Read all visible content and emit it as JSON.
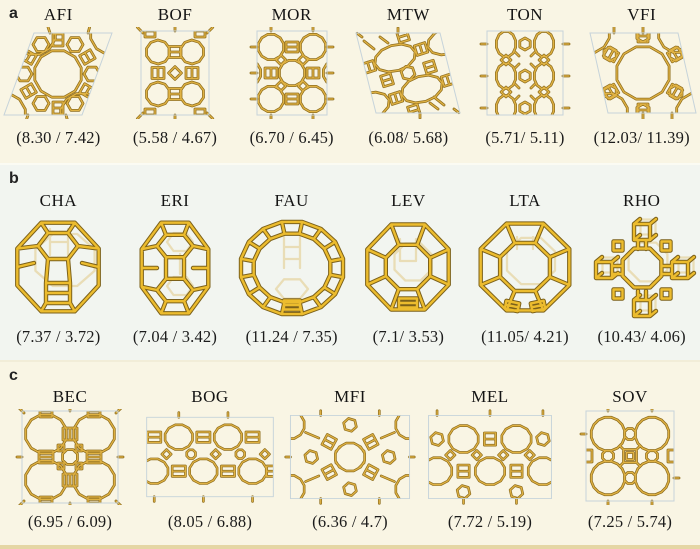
{
  "figure": {
    "description": "Zeolite framework structures with pore size values",
    "background": "#f9f5e4",
    "panel_b_background": "#f2f5f0",
    "framework_color": "#dcae35",
    "text_color": "#1b1b1b"
  },
  "sections": [
    {
      "label": "a",
      "style": "net",
      "items": [
        {
          "name": "AFI",
          "value": "(8.30 / 7.42)"
        },
        {
          "name": "BOF",
          "value": "(5.58 / 4.67)"
        },
        {
          "name": "MOR",
          "value": "(6.70 / 6.45)"
        },
        {
          "name": "MTW",
          "value": "(6.08/ 5.68)"
        },
        {
          "name": "TON",
          "value": "(5.71/ 5.11)"
        },
        {
          "name": "VFI",
          "value": "(12.03/ 11.39)"
        }
      ]
    },
    {
      "label": "b",
      "style": "cage",
      "items": [
        {
          "name": "CHA",
          "value": "(7.37 / 3.72)"
        },
        {
          "name": "ERI",
          "value": "(7.04 / 3.42)"
        },
        {
          "name": "FAU",
          "value": "(11.24 / 7.35)"
        },
        {
          "name": "LEV",
          "value": "(7.1/ 3.53)"
        },
        {
          "name": "LTA",
          "value": "(11.05/ 4.21)"
        },
        {
          "name": "RHO",
          "value": "(10.43/ 4.06)"
        }
      ]
    },
    {
      "label": "c",
      "style": "net",
      "items": [
        {
          "name": "BEC",
          "value": "(6.95 / 6.09)"
        },
        {
          "name": "BOG",
          "value": "(8.05 / 6.88)"
        },
        {
          "name": "MFI",
          "value": "(6.36 / 4.7)"
        },
        {
          "name": "MEL",
          "value": "(7.72 / 5.19)"
        },
        {
          "name": "SOV",
          "value": "(7.25 / 5.74)"
        }
      ]
    }
  ]
}
